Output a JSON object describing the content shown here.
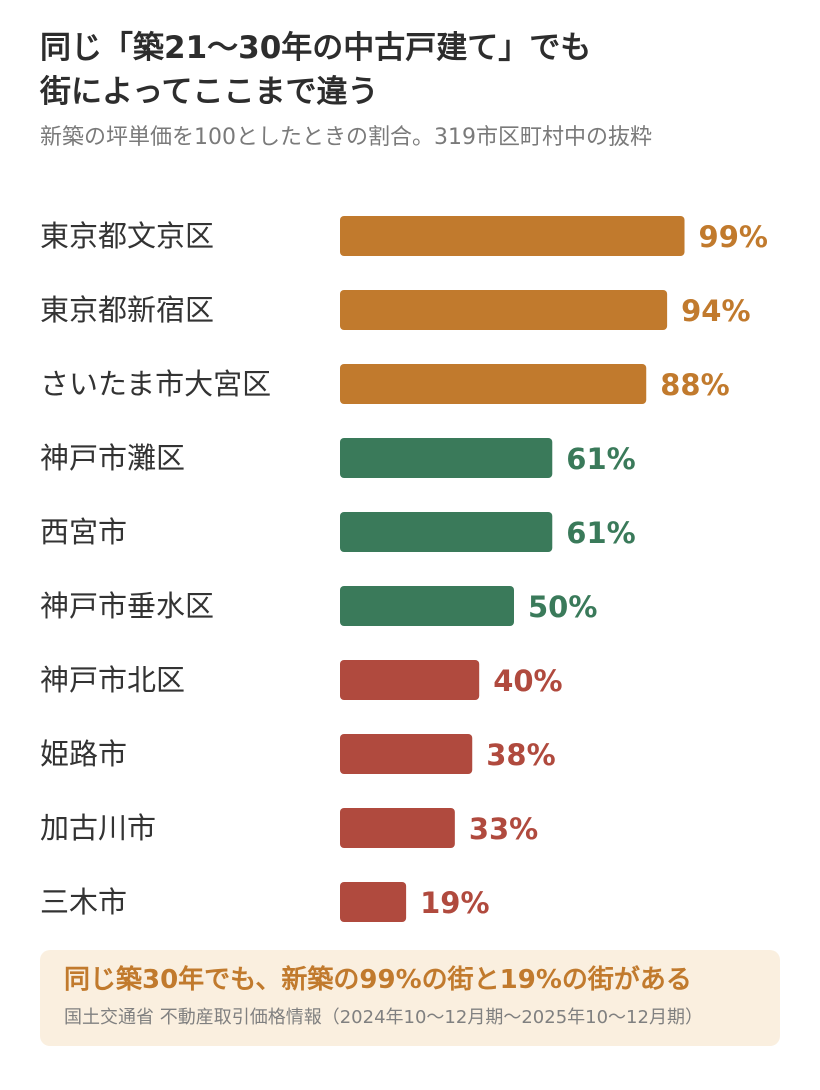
{
  "header": {
    "title_line1": "同じ「築21〜30年の中古戸建て」でも",
    "title_line2": "街によってここまで違う",
    "subtitle": "新築の坪単価を100としたときの割合。319市区町村中の抜粋"
  },
  "colors": {
    "high": "#c17a2d",
    "mid": "#3a7a5a",
    "low": "#b04a3e"
  },
  "chart_data": {
    "type": "bar",
    "orientation": "horizontal",
    "categories": [
      "東京都文京区",
      "東京都新宿区",
      "さいたま市大宮区",
      "神戸市灘区",
      "西宮市",
      "神戸市垂水区",
      "神戸市北区",
      "姫路市",
      "加古川市",
      "三木市"
    ],
    "values": [
      99,
      94,
      88,
      61,
      61,
      50,
      40,
      38,
      33,
      19
    ],
    "value_labels": [
      "99%",
      "94%",
      "88%",
      "61%",
      "61%",
      "50%",
      "40%",
      "38%",
      "33%",
      "19%"
    ],
    "groups": [
      "high",
      "high",
      "high",
      "mid",
      "mid",
      "mid",
      "low",
      "low",
      "low",
      "low"
    ],
    "xlim": [
      0,
      100
    ],
    "grid": false
  },
  "footer": {
    "headline": "同じ築30年でも、新築の99%の街と19%の街がある",
    "source": "国土交通省 不動産取引価格情報（2024年10〜12月期〜2025年10〜12月期）"
  }
}
